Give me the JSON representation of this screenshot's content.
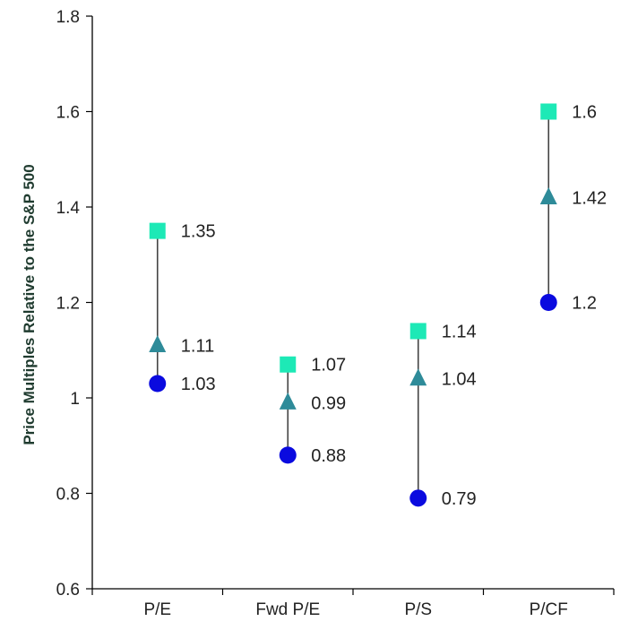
{
  "chart_data": {
    "type": "scatter",
    "title": "",
    "xlabel": "",
    "ylabel": "Price Multiples Relative to the S&P 500",
    "ylim": [
      0.6,
      1.8
    ],
    "yticks": [
      0.6,
      0.8,
      1,
      1.2,
      1.4,
      1.6,
      1.8
    ],
    "ytick_labels": [
      "0.6",
      "0.8",
      "1",
      "1.2",
      "1.4",
      "1.6",
      "1.8"
    ],
    "categories": [
      "P/E",
      "Fwd P/E",
      "P/S",
      "P/CF"
    ],
    "grid": false,
    "legend": "none",
    "series": [
      {
        "marker": "square",
        "color": "#1de9b6",
        "values": [
          1.35,
          1.07,
          1.14,
          1.6
        ],
        "labels": [
          "1.35",
          "1.07",
          "1.14",
          "1.6"
        ]
      },
      {
        "marker": "triangle",
        "color": "#2e8b99",
        "values": [
          1.11,
          0.99,
          1.04,
          1.42
        ],
        "labels": [
          "1.11",
          "0.99",
          "1.04",
          "1.42"
        ]
      },
      {
        "marker": "circle",
        "color": "#0a0adf",
        "values": [
          1.03,
          0.88,
          0.79,
          1.2
        ],
        "labels": [
          "1.03",
          "0.88",
          "0.79",
          "1.2"
        ]
      }
    ],
    "connector_color": "#444444"
  }
}
